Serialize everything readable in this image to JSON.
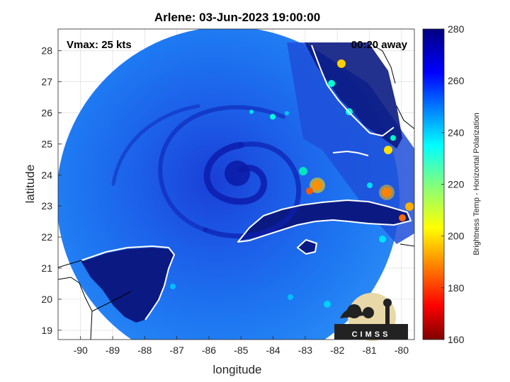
{
  "figure": {
    "title": "Arlene: 03-Jun-2023 19:00:00",
    "vmax_label": "Vmax: 25 kts",
    "away_label": "00:20 away",
    "xlabel": "longitude",
    "ylabel": "latitude",
    "colorbar_label": "Brightness Temp - Horizontal Polarization",
    "logo_text": "CIMSS"
  },
  "chart_data": {
    "type": "heatmap",
    "title": "Arlene: 03-Jun-2023 19:00:00",
    "xlabel": "longitude",
    "ylabel": "latitude",
    "xlim": [
      -90.7,
      -79.6
    ],
    "ylim": [
      18.7,
      28.7
    ],
    "xticks": [
      "-90",
      "-89",
      "-88",
      "-87",
      "-86",
      "-85",
      "-84",
      "-83",
      "-82",
      "-81",
      "-80"
    ],
    "xtick_values": [
      -90,
      -89,
      -88,
      -87,
      -86,
      -85,
      -84,
      -83,
      -82,
      -81,
      -80
    ],
    "yticks": [
      "19",
      "20",
      "21",
      "22",
      "23",
      "24",
      "25",
      "26",
      "27",
      "28"
    ],
    "ytick_values": [
      19,
      20,
      21,
      22,
      23,
      24,
      25,
      26,
      27,
      28
    ],
    "grid": true,
    "storm_center": {
      "lon": -84.9,
      "lat": 24.0
    },
    "colorbar": {
      "range": [
        160,
        280
      ],
      "ticks": [
        "280",
        "260",
        "240",
        "220",
        "200",
        "180",
        "160"
      ],
      "tick_values": [
        280,
        260,
        240,
        220,
        200,
        180,
        160
      ],
      "colormap": "jet",
      "colors": [
        "#7f0000",
        "#ff0000",
        "#ff8000",
        "#ffff00",
        "#80ff80",
        "#00ffff",
        "#0080ff",
        "#0000ff",
        "#00007f"
      ]
    }
  }
}
